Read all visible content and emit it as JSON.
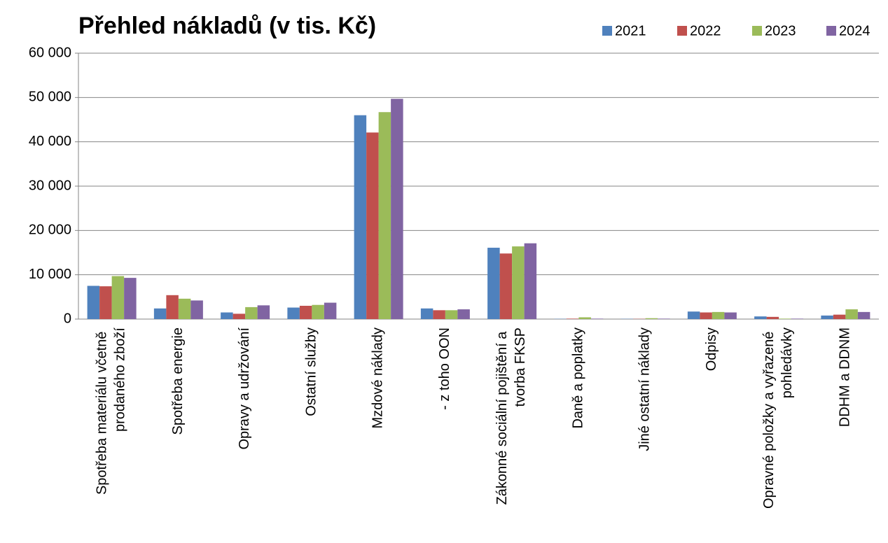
{
  "chart_data": {
    "type": "bar",
    "title": "Přehled nákladů (v tis. Kč)",
    "categories": [
      "Spotřeba materiálu včetně prodaného zboží",
      "Spotřeba energie",
      "Opravy a udržování",
      "Ostatní služby",
      "Mzdové náklady",
      "- z toho OON",
      "Zákonné sociální pojištění a tvorba FKSP",
      "Daně a poplatky",
      "Jiné ostatní náklady",
      "Odpisy",
      "Opravné položky a vyřazené pohledávky",
      "DDHM a DDNM"
    ],
    "series": [
      {
        "name": "2021",
        "color": "#4f81bd",
        "values": [
          7500,
          2400,
          1500,
          2600,
          46000,
          2400,
          16100,
          50,
          50,
          1700,
          600,
          800
        ]
      },
      {
        "name": "2022",
        "color": "#c0504d",
        "values": [
          7400,
          5400,
          1200,
          3000,
          42100,
          2000,
          14800,
          100,
          50,
          1500,
          500,
          1000
        ]
      },
      {
        "name": "2023",
        "color": "#9bbb59",
        "values": [
          9700,
          4600,
          2700,
          3200,
          46700,
          2000,
          16400,
          400,
          200,
          1600,
          100,
          2200
        ]
      },
      {
        "name": "2024",
        "color": "#8064a2",
        "values": [
          9300,
          4200,
          3100,
          3700,
          49700,
          2200,
          17100,
          100,
          100,
          1500,
          100,
          1600
        ]
      }
    ],
    "ylim": [
      0,
      60000
    ],
    "yticks": [
      0,
      {
        "value": 10000,
        "label": "10 000"
      },
      {
        "value": 20000,
        "label": "20 000"
      },
      {
        "value": 30000,
        "label": "30 000"
      },
      {
        "value": 40000,
        "label": "40 000"
      },
      {
        "value": 50000,
        "label": "50 000"
      },
      {
        "value": 60000,
        "label": "60 000"
      }
    ],
    "grid": true,
    "legend": "top-right"
  }
}
